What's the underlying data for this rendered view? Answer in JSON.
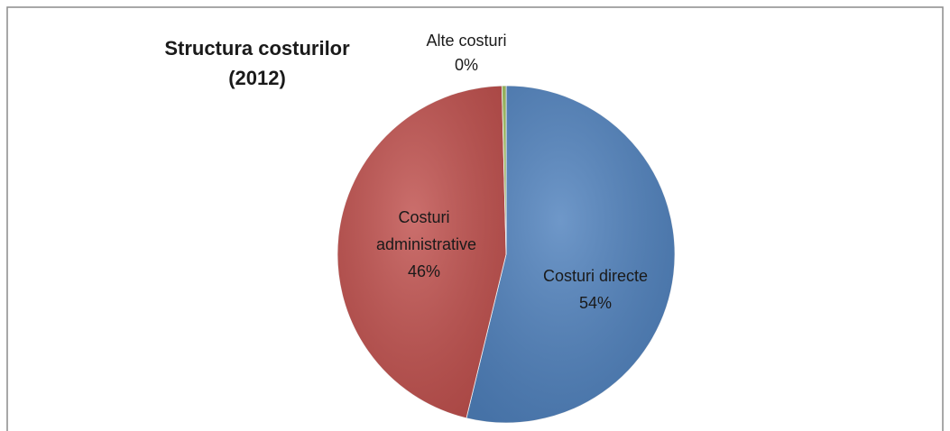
{
  "chart_data": {
    "type": "pie",
    "title": [
      "Structura costurilor",
      "(2012)"
    ],
    "categories": [
      "Costuri directe",
      "Costuri administrative",
      "Alte costuri"
    ],
    "values": [
      54,
      46,
      0.4
    ],
    "value_labels": [
      "54%",
      "46%",
      "0%"
    ],
    "colors": [
      "#4f81bd",
      "#c0504d",
      "#9bbb59"
    ]
  }
}
